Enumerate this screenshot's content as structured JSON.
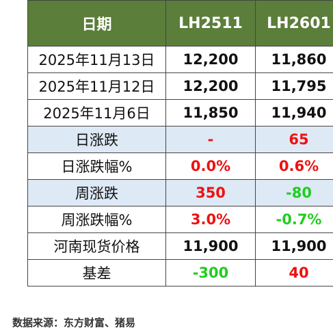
{
  "table": {
    "headers": [
      "日期",
      "LH2511",
      "LH2601"
    ],
    "rows": [
      {
        "label": "2025年11月13日",
        "lh2511": "12,200",
        "lh2601": "11,860"
      },
      {
        "label": "2025年11月12日",
        "lh2511": "12,200",
        "lh2601": "11,795"
      },
      {
        "label": "2025年11月6日",
        "lh2511": "11,850",
        "lh2601": "11,940"
      },
      {
        "label": "日涨跌",
        "lh2511": "-",
        "lh2601": "65"
      },
      {
        "label": "日涨跌幅%",
        "lh2511": "0.0%",
        "lh2601": "0.6%"
      },
      {
        "label": "周涨跌",
        "lh2511": "350",
        "lh2601": "-80"
      },
      {
        "label": "周涨跌幅%",
        "lh2511": "3.0%",
        "lh2601": "-0.7%"
      },
      {
        "label": "河南现货价格",
        "lh2511": "11,900",
        "lh2601": "11,900"
      },
      {
        "label": "基差",
        "lh2511": "-300",
        "lh2601": "40"
      }
    ]
  },
  "colors": {
    "header_bg": "#5b7e3a",
    "shade_bg": "#dde9f5",
    "up": "#ee1111",
    "down": "#22cc22"
  },
  "source_note": "数据来源：东方财富、猪易"
}
